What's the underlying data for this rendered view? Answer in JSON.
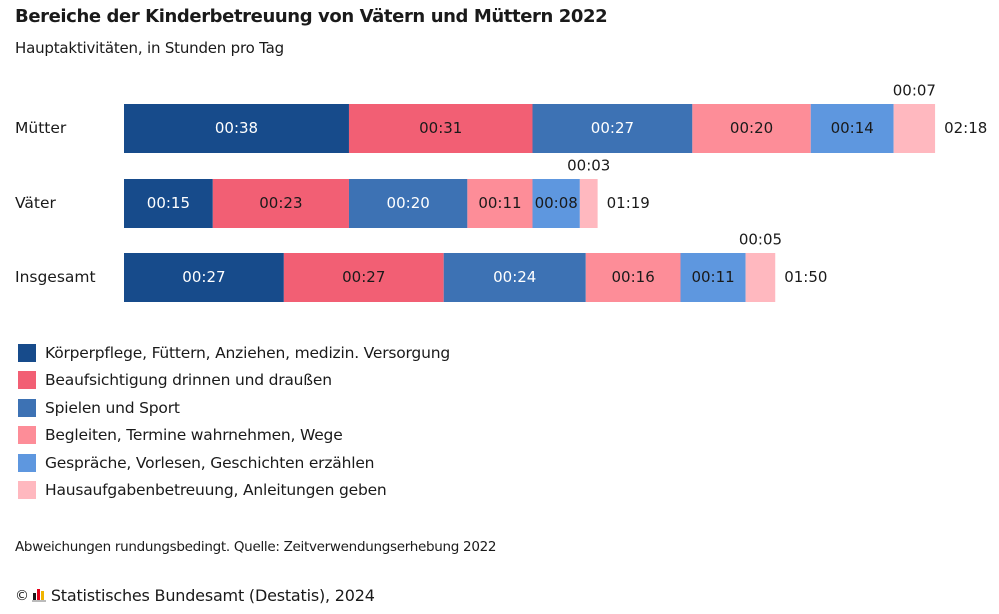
{
  "header": {
    "title": "Bereiche der Kinderbetreuung von Vätern und Müttern 2022",
    "subtitle": "Hauptaktivitäten, in Stunden pro Tag"
  },
  "chart_data": {
    "type": "bar",
    "orientation": "horizontal",
    "stacked": true,
    "title": "Bereiche der Kinderbetreuung von Vätern und Müttern 2022",
    "subtitle": "Hauptaktivitäten, in Stunden pro Tag",
    "unit": "hh:mm",
    "categories": [
      "Mütter",
      "Väter",
      "Insgesamt"
    ],
    "series": [
      {
        "name": "Körperpflege, Füttern, Anziehen, medizin. Versorgung",
        "color": "#174b8b",
        "label_color": "#ffffff",
        "values": [
          38,
          15,
          27
        ],
        "labels": [
          "00:38",
          "00:15",
          "00:27"
        ]
      },
      {
        "name": "Beaufsichtigung drinnen und draußen",
        "color": "#f25f74",
        "label_color": "#1a1a1a",
        "values": [
          31,
          23,
          27
        ],
        "labels": [
          "00:31",
          "00:23",
          "00:27"
        ]
      },
      {
        "name": "Spielen und Sport",
        "color": "#3d72b4",
        "label_color": "#ffffff",
        "values": [
          27,
          20,
          24
        ],
        "labels": [
          "00:27",
          "00:20",
          "00:24"
        ]
      },
      {
        "name": "Begleiten, Termine wahrnehmen, Wege",
        "color": "#fd8d98",
        "label_color": "#1a1a1a",
        "values": [
          20,
          11,
          16
        ],
        "labels": [
          "00:20",
          "00:11",
          "00:16"
        ]
      },
      {
        "name": "Gespräche, Vorlesen, Geschichten erzählen",
        "color": "#5e97df",
        "label_color": "#1a1a1a",
        "values": [
          14,
          8,
          11
        ],
        "labels": [
          "00:14",
          "00:08",
          "00:11"
        ]
      },
      {
        "name": "Hausaufgabenbetreuung, Anleitungen geben",
        "color": "#ffb8bf",
        "label_color": "#1a1a1a",
        "values": [
          7,
          3,
          5
        ],
        "labels": [
          "00:07",
          "00:03",
          "00:05"
        ],
        "label_position": "above"
      }
    ],
    "totals": [
      138,
      79,
      110
    ],
    "total_labels": [
      "02:18",
      "01:19",
      "01:50"
    ],
    "xlim": [
      0,
      138
    ],
    "grid": false,
    "legend_position": "bottom-left"
  },
  "footer": {
    "note": "Abweichungen rundungsbedingt. Quelle: Zeitverwendungserhebung 2022",
    "copyright_symbol": "©",
    "source": "Statistisches Bundesamt (Destatis), 2024",
    "logo_colors": [
      "#1a1a1a",
      "#e2001a",
      "#f0b400"
    ]
  }
}
